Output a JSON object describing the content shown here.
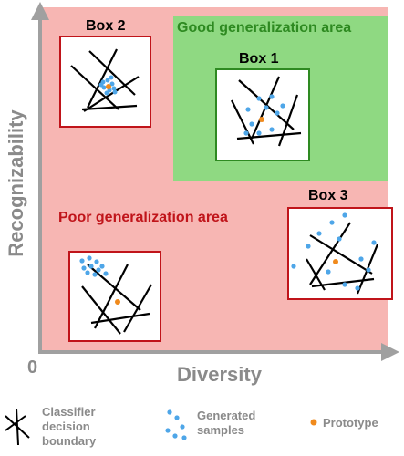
{
  "axes": {
    "y_label": "Recognizability",
    "x_label": "Diversity",
    "origin_label": "0"
  },
  "areas": {
    "good": "Good generalization area",
    "poor": "Poor generalization area"
  },
  "boxes": {
    "box1": "Box 1",
    "box2": "Box 2",
    "box3": "Box 3"
  },
  "legend": {
    "classifier": "Classifier decision boundary",
    "samples": "Generated samples",
    "prototype": "Prototype"
  },
  "colors": {
    "poor_area": "#f7b6b3",
    "good_area": "#8fd982",
    "poor_text": "#c0141a",
    "good_text": "#2e8a21",
    "sample": "#4ea6e8",
    "prototype": "#f08a1c",
    "axis": "#a0a0a0"
  }
}
